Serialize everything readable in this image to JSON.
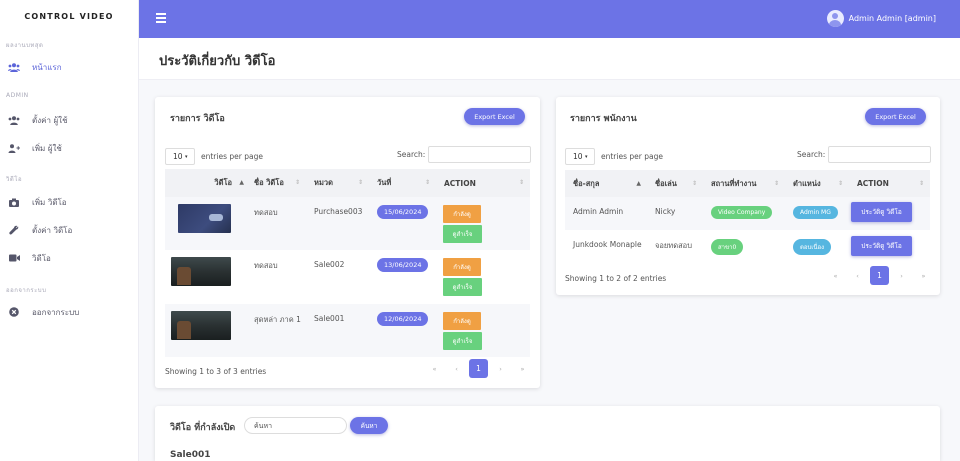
{
  "sidebar": {
    "brand": "CONTROL VIDEO",
    "sections": [
      {
        "title": "ผลงานบทสุด"
      },
      {
        "title": "ADMIN"
      },
      {
        "title": "วิดีโอ"
      },
      {
        "title": "ออกจากระบบ"
      }
    ],
    "items": [
      {
        "label": "หน้าแรก",
        "icon": "users-icon"
      },
      {
        "label": "ตั้งค่า ผู้ใช้",
        "icon": "users-icon"
      },
      {
        "label": "เพิ่ม ผู้ใช้",
        "icon": "user-plus-icon"
      },
      {
        "label": "เพิ่ม วิดีโอ",
        "icon": "camera-icon"
      },
      {
        "label": "ตั้งค่า วิดีโอ",
        "icon": "wrench-icon"
      },
      {
        "label": "วิดีโอ",
        "icon": "video-icon"
      },
      {
        "label": "ออกจากระบบ",
        "icon": "close-circle-icon"
      }
    ]
  },
  "topbar": {
    "user_label": "Admin Admin [admin]",
    "color": "#6c73e6"
  },
  "page": {
    "title": "ประวัติเกี่ยวกับ วิดีโอ"
  },
  "videos_card": {
    "title": "รายการ วิดีโอ",
    "export_label": "Export Excel",
    "length_value": "10",
    "length_suffix": "entries per page",
    "search_label": "Search:",
    "columns": [
      "วิดีโอ",
      "ชื่อ วิดีโอ",
      "หมวด",
      "วันที่",
      "ACTION"
    ],
    "rows": [
      {
        "name": "ทดสอบ",
        "category": "Purchase003",
        "date": "15/06/2024",
        "action_1": "กำลังดู",
        "action_2": "ดูสำเร็จ"
      },
      {
        "name": "ทดสอบ",
        "category": "Sale002",
        "date": "13/06/2024",
        "action_1": "กำลังดู",
        "action_2": "ดูสำเร็จ"
      },
      {
        "name": "สุดหล่า ภาค 1",
        "category": "Sale001",
        "date": "12/06/2024",
        "action_1": "กำลังดู",
        "action_2": "ดูสำเร็จ"
      }
    ],
    "info": "Showing 1 to 3 of 3 entries",
    "pager": {
      "first": "«",
      "prev": "‹",
      "current": "1",
      "next": "›",
      "last": "»"
    }
  },
  "staff_card": {
    "title": "รายการ พนักงาน",
    "export_label": "Export Excel",
    "length_value": "10",
    "length_suffix": "entries per page",
    "search_label": "Search:",
    "columns": [
      "ชื่อ-สกุล",
      "ชื่อเล่น",
      "สถานที่ทำงาน",
      "ตำแหน่ง",
      "ACTION"
    ],
    "rows": [
      {
        "name": "Admin Admin",
        "nickname": "Nicky",
        "workplace": "Video Company",
        "position": "Admin MG",
        "action": "ประวัติดู วิดีโอ"
      },
      {
        "name": "Junkdook Monaple",
        "nickname": "จอยทดสอบ",
        "workplace": "สาขา0",
        "position": "ตอบเนื่อง",
        "action": "ประวัติดู วิดีโอ"
      }
    ],
    "info": "Showing 1 to 2 of 2 entries",
    "pager": {
      "first": "«",
      "prev": "‹",
      "current": "1",
      "next": "›",
      "last": "»"
    }
  },
  "open_card": {
    "title": "วิดีโอ ที่กำลังเปิด",
    "search_placeholder": "ค้นหา",
    "search_button": "ค้นหา",
    "current_video": "Sale001"
  }
}
